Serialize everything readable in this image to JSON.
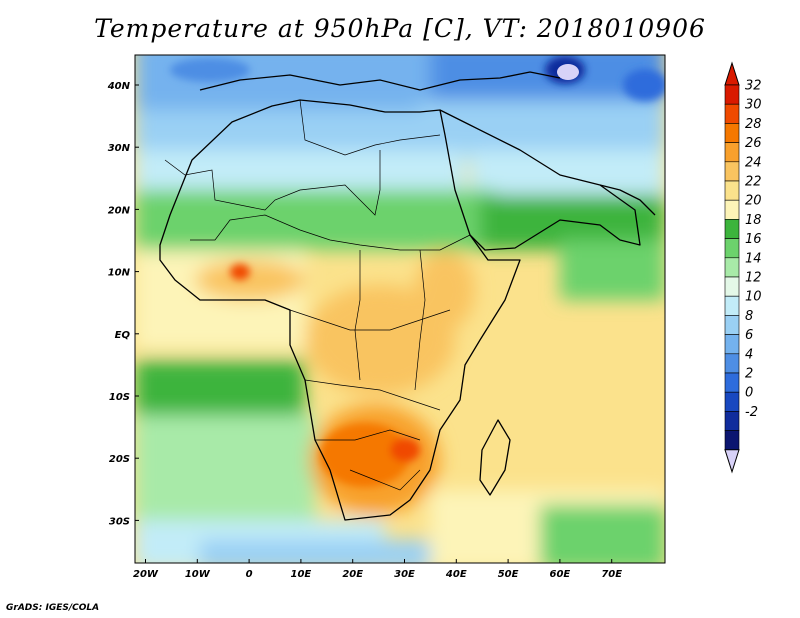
{
  "title": "Temperature at 950hPa [C], VT: 2018010906",
  "credit": "GrADS: IGES/COLA",
  "map": {
    "lon_ticks": [
      "20W",
      "10W",
      "0",
      "10E",
      "20E",
      "30E",
      "40E",
      "50E",
      "60E",
      "70E"
    ],
    "lat_ticks": [
      "40N",
      "30N",
      "20N",
      "10N",
      "EQ",
      "10S",
      "20S",
      "30S"
    ]
  },
  "colorbar": {
    "levels": [
      "32",
      "30",
      "28",
      "26",
      "24",
      "22",
      "20",
      "18",
      "16",
      "14",
      "12",
      "10",
      "8",
      "6",
      "4",
      "2",
      "0",
      "-2"
    ],
    "colors": [
      "#d91a00",
      "#f04a00",
      "#f57800",
      "#f8a02c",
      "#f9c460",
      "#fbe28c",
      "#fdf4b8",
      "#3cb43c",
      "#6cd26c",
      "#a8eaa8",
      "#e4f8e8",
      "#c2ecf8",
      "#9ad0f4",
      "#74b2ee",
      "#4e8ee4",
      "#2e6cdc",
      "#1848c0",
      "#102c9c",
      "#0c1670"
    ],
    "top_color": "#d91a00",
    "bottom_color": "#d8d2f8"
  }
}
